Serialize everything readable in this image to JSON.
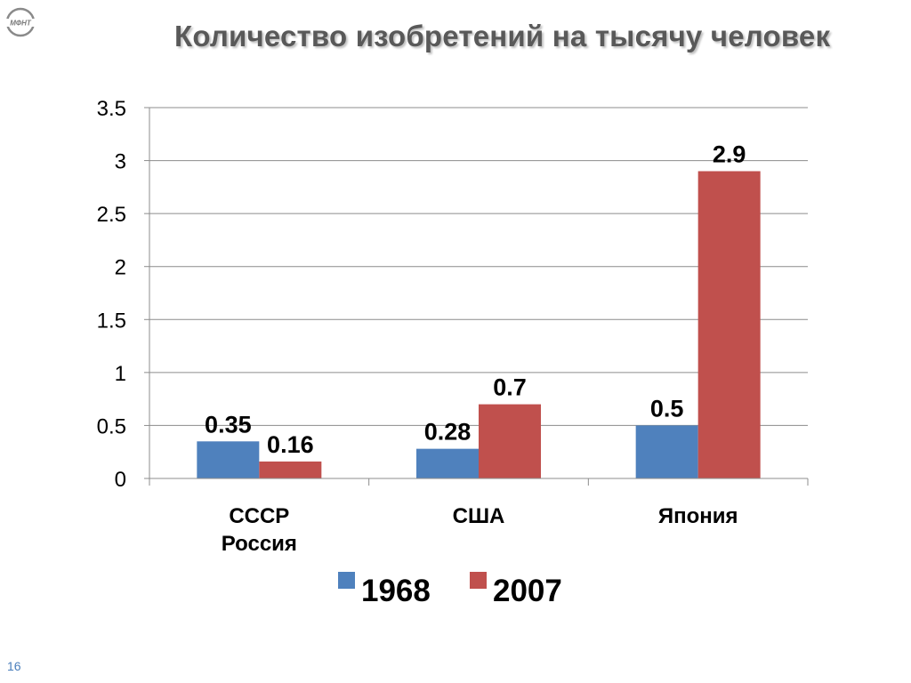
{
  "title": "Количество изобретений на тысячу человек",
  "slide_number": "16",
  "logo_text": "МФНТ",
  "chart_data": {
    "type": "bar",
    "categories": [
      "СССР\nРоссия",
      "США",
      "Япония"
    ],
    "series": [
      {
        "name": "1968",
        "values": [
          0.35,
          0.28,
          0.5
        ],
        "color": "#4f81bd"
      },
      {
        "name": "2007",
        "values": [
          0.16,
          0.7,
          2.9
        ],
        "color": "#c0504d"
      }
    ],
    "ylim": [
      0,
      3.5
    ],
    "yticks": [
      0,
      0.5,
      1,
      1.5,
      2,
      2.5,
      3,
      3.5
    ],
    "ytick_labels": [
      "0",
      "0.5",
      "1",
      "1.5",
      "2",
      "2.5",
      "3",
      "3.5"
    ],
    "data_labels": [
      [
        "0.35",
        "0.28",
        "0.5"
      ],
      [
        "0.16",
        "0.7",
        "2.9"
      ]
    ],
    "grid": true,
    "legend": "bottom",
    "title": "",
    "xlabel": "",
    "ylabel": ""
  }
}
